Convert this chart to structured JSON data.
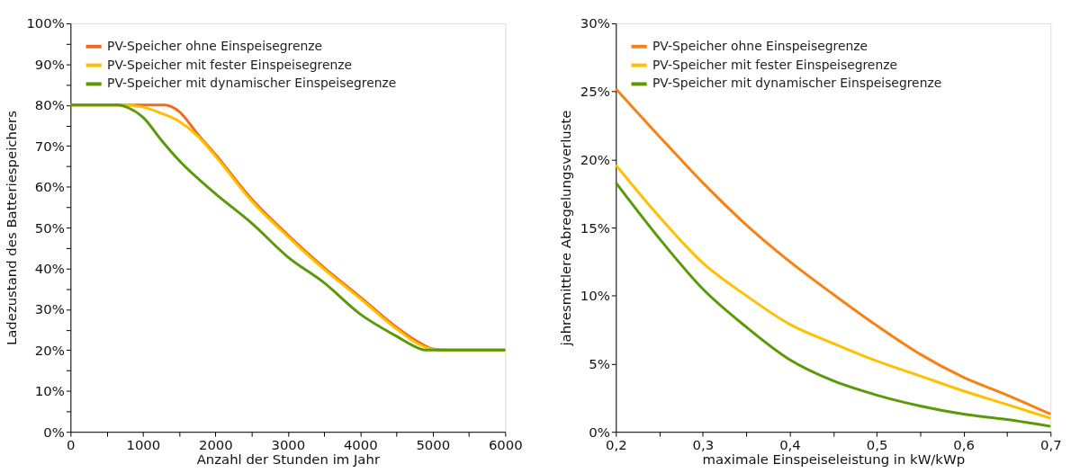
{
  "chart_data": [
    {
      "type": "line",
      "xlabel": "Anzahl der Stunden im Jahr",
      "ylabel": "Ladezustand des Batteriespeichers",
      "legend": "top left",
      "grid": false,
      "marker": "none",
      "line_style": "solid",
      "xlim": [
        0,
        6000
      ],
      "ylim": [
        0,
        100
      ],
      "xticks": [
        0,
        {
          "value": 500,
          "label": null
        },
        1000,
        {
          "value": 1500,
          "label": null
        },
        2000,
        {
          "value": 2500,
          "label": null
        },
        3000,
        {
          "value": 3500,
          "label": null
        },
        4000,
        {
          "value": 4500,
          "label": null
        },
        5000,
        {
          "value": 5500,
          "label": null
        },
        6000
      ],
      "yticks": [
        {
          "value": 0,
          "label": "0%"
        },
        {
          "value": 5,
          "label": null
        },
        {
          "value": 10,
          "label": "10%"
        },
        {
          "value": 15,
          "label": null
        },
        {
          "value": 20,
          "label": "20%"
        },
        {
          "value": 25,
          "label": null
        },
        {
          "value": 30,
          "label": "30%"
        },
        {
          "value": 35,
          "label": null
        },
        {
          "value": 40,
          "label": "40%"
        },
        {
          "value": 45,
          "label": null
        },
        {
          "value": 50,
          "label": "50%"
        },
        {
          "value": 55,
          "label": null
        },
        {
          "value": 60,
          "label": "60%"
        },
        {
          "value": 65,
          "label": null
        },
        {
          "value": 70,
          "label": "70%"
        },
        {
          "value": 75,
          "label": null
        },
        {
          "value": 80,
          "label": "80%"
        },
        {
          "value": 85,
          "label": null
        },
        {
          "value": 90,
          "label": "90%"
        },
        {
          "value": 95,
          "label": null
        },
        {
          "value": 100,
          "label": "100%"
        }
      ],
      "series": [
        {
          "name": "PV-Speicher ohne Einspeisegrenze",
          "color": "#f26a1b",
          "x": [
            0,
            600,
            1000,
            1300,
            1500,
            1750,
            2000,
            2500,
            3000,
            3500,
            4000,
            4500,
            4800,
            5000,
            5200,
            6000
          ],
          "values": [
            80,
            80,
            80,
            80,
            78.4,
            73,
            67.9,
            57,
            48.2,
            40.2,
            33,
            25.6,
            22,
            20.3,
            20,
            20
          ]
        },
        {
          "name": "PV-Speicher mit fester Einspeisegrenze",
          "color": "#ffc000",
          "x": [
            0,
            700,
            1000,
            1250,
            1500,
            1750,
            2000,
            2500,
            3000,
            3500,
            4000,
            4500,
            4800,
            5000,
            5200,
            6000
          ],
          "values": [
            80,
            80,
            79.5,
            78,
            76,
            72.5,
            67.5,
            56.5,
            47.8,
            39.8,
            32.6,
            25.2,
            21.5,
            20.2,
            20,
            20
          ]
        },
        {
          "name": "PV-Speicher mit dynamischer Einspeisegrenze",
          "color": "#5a9a08",
          "x": [
            0,
            650,
            800,
            1000,
            1250,
            1500,
            2000,
            2500,
            3000,
            3500,
            4000,
            4500,
            4800,
            4900,
            6000
          ],
          "values": [
            80,
            80,
            79.3,
            77,
            71.5,
            66.4,
            58.3,
            51.1,
            42.8,
            36.5,
            28.8,
            23.4,
            20.5,
            20,
            20
          ]
        }
      ]
    },
    {
      "type": "line",
      "xlabel": "maximale Einspeiseleistung in kW/kWp",
      "ylabel": "jahresmittlere Abregelungsverluste",
      "legend": "top left",
      "grid": false,
      "marker": "none",
      "line_style": "solid",
      "xlim": [
        0.2,
        0.7
      ],
      "ylim": [
        0,
        30
      ],
      "xticks": [
        {
          "value": 0.2,
          "label": "0,2"
        },
        {
          "value": 0.25,
          "label": null
        },
        {
          "value": 0.3,
          "label": "0,3"
        },
        {
          "value": 0.35,
          "label": null
        },
        {
          "value": 0.4,
          "label": "0,4"
        },
        {
          "value": 0.45,
          "label": null
        },
        {
          "value": 0.5,
          "label": "0,5"
        },
        {
          "value": 0.55,
          "label": null
        },
        {
          "value": 0.6,
          "label": "0,6"
        },
        {
          "value": 0.65,
          "label": null
        },
        {
          "value": 0.7,
          "label": "0,7"
        }
      ],
      "yticks": [
        {
          "value": 0,
          "label": "0%"
        },
        {
          "value": 5,
          "label": "5%"
        },
        {
          "value": 10,
          "label": "10%"
        },
        {
          "value": 15,
          "label": "15%"
        },
        {
          "value": 20,
          "label": "20%"
        },
        {
          "value": 25,
          "label": "25%"
        },
        {
          "value": 30,
          "label": "30%"
        }
      ],
      "series": [
        {
          "name": "PV-Speicher ohne Einspeisegrenze",
          "color": "#f98011",
          "x": [
            0.2,
            0.25,
            0.3,
            0.35,
            0.4,
            0.45,
            0.5,
            0.55,
            0.6,
            0.65,
            0.7
          ],
          "values": [
            25.2,
            21.7,
            18.3,
            15.2,
            12.5,
            10.1,
            7.8,
            5.7,
            4.0,
            2.7,
            1.3
          ]
        },
        {
          "name": "PV-Speicher mit fester Einspeisegrenze",
          "color": "#ffc000",
          "x": [
            0.2,
            0.25,
            0.3,
            0.35,
            0.4,
            0.45,
            0.5,
            0.55,
            0.6,
            0.65,
            0.7
          ],
          "values": [
            19.6,
            15.8,
            12.4,
            10.0,
            7.9,
            6.5,
            5.2,
            4.1,
            3.0,
            2.0,
            1.0
          ]
        },
        {
          "name": "PV-Speicher mit dynamischer Einspeisegrenze",
          "color": "#5a9a08",
          "x": [
            0.2,
            0.25,
            0.3,
            0.35,
            0.4,
            0.45,
            0.5,
            0.55,
            0.6,
            0.65,
            0.7
          ],
          "values": [
            18.3,
            14.2,
            10.5,
            7.7,
            5.3,
            3.75,
            2.7,
            1.9,
            1.3,
            0.9,
            0.4
          ]
        }
      ]
    }
  ]
}
